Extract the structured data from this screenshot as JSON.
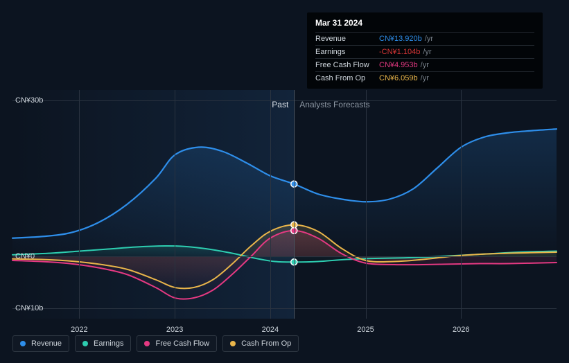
{
  "chart": {
    "background_color": "#0c1420",
    "grid_color": "#2a3340",
    "label_color": "#cfd6dd",
    "label_fontsize": 11,
    "y_axis": {
      "min": -12,
      "max": 32,
      "ticks": [
        {
          "value": 30,
          "label": "CN¥30b"
        },
        {
          "value": 0,
          "label": "CN¥0"
        },
        {
          "value": -10,
          "label": "CN¥10b"
        }
      ]
    },
    "x_axis": {
      "min": 2021.3,
      "max": 2027.0,
      "ticks": [
        {
          "value": 2022,
          "label": "2022"
        },
        {
          "value": 2023,
          "label": "2023"
        },
        {
          "value": 2024,
          "label": "2024"
        },
        {
          "value": 2025,
          "label": "2025"
        },
        {
          "value": 2026,
          "label": "2026"
        }
      ]
    },
    "cursor_x": 2024.25,
    "past_boundary_x": 2024.25,
    "series": [
      {
        "id": "revenue",
        "name": "Revenue",
        "color": "#2e8eea",
        "line_width": 2.2,
        "fill_opacity": 0.12,
        "marker": {
          "x": 2024.25,
          "y": 13.92
        },
        "points": [
          [
            2021.3,
            3.5
          ],
          [
            2021.6,
            3.8
          ],
          [
            2021.9,
            4.5
          ],
          [
            2022.2,
            6.5
          ],
          [
            2022.5,
            10.0
          ],
          [
            2022.8,
            15.0
          ],
          [
            2023.0,
            19.5
          ],
          [
            2023.25,
            21.0
          ],
          [
            2023.5,
            20.2
          ],
          [
            2023.75,
            18.0
          ],
          [
            2024.0,
            15.5
          ],
          [
            2024.25,
            13.92
          ],
          [
            2024.5,
            12.0
          ],
          [
            2024.75,
            11.0
          ],
          [
            2025.0,
            10.5
          ],
          [
            2025.25,
            11.0
          ],
          [
            2025.5,
            13.0
          ],
          [
            2025.75,
            17.0
          ],
          [
            2026.0,
            21.0
          ],
          [
            2026.25,
            23.0
          ],
          [
            2026.5,
            23.8
          ],
          [
            2026.75,
            24.2
          ],
          [
            2027.0,
            24.5
          ]
        ]
      },
      {
        "id": "earnings",
        "name": "Earnings",
        "color": "#2dcdb0",
        "line_width": 2,
        "fill_opacity": 0.1,
        "marker": {
          "x": 2024.25,
          "y": -1.104
        },
        "points": [
          [
            2021.3,
            0.3
          ],
          [
            2021.7,
            0.6
          ],
          [
            2022.0,
            1.0
          ],
          [
            2022.3,
            1.4
          ],
          [
            2022.6,
            1.8
          ],
          [
            2022.9,
            2.0
          ],
          [
            2023.1,
            1.9
          ],
          [
            2023.35,
            1.4
          ],
          [
            2023.6,
            0.6
          ],
          [
            2023.85,
            -0.4
          ],
          [
            2024.05,
            -1.0
          ],
          [
            2024.25,
            -1.104
          ],
          [
            2024.5,
            -1.0
          ],
          [
            2024.8,
            -0.6
          ],
          [
            2025.1,
            -0.4
          ],
          [
            2025.4,
            -0.3
          ],
          [
            2025.7,
            -0.1
          ],
          [
            2026.0,
            0.2
          ],
          [
            2026.3,
            0.5
          ],
          [
            2026.6,
            0.8
          ],
          [
            2027.0,
            1.0
          ]
        ]
      },
      {
        "id": "fcf",
        "name": "Free Cash Flow",
        "color": "#e53982",
        "line_width": 2,
        "fill_opacity": 0.12,
        "marker": {
          "x": 2024.25,
          "y": 4.953
        },
        "points": [
          [
            2021.3,
            -0.8
          ],
          [
            2021.6,
            -1.0
          ],
          [
            2021.9,
            -1.4
          ],
          [
            2022.2,
            -2.2
          ],
          [
            2022.5,
            -3.5
          ],
          [
            2022.8,
            -6.0
          ],
          [
            2023.0,
            -8.0
          ],
          [
            2023.2,
            -8.0
          ],
          [
            2023.4,
            -6.5
          ],
          [
            2023.6,
            -3.5
          ],
          [
            2023.8,
            0.0
          ],
          [
            2024.0,
            3.5
          ],
          [
            2024.25,
            4.953
          ],
          [
            2024.5,
            3.5
          ],
          [
            2024.75,
            0.5
          ],
          [
            2025.0,
            -1.3
          ],
          [
            2025.3,
            -1.6
          ],
          [
            2025.6,
            -1.6
          ],
          [
            2025.9,
            -1.5
          ],
          [
            2026.2,
            -1.4
          ],
          [
            2026.5,
            -1.4
          ],
          [
            2027.0,
            -1.2
          ]
        ]
      },
      {
        "id": "cfo",
        "name": "Cash From Op",
        "color": "#e9b54a",
        "line_width": 2,
        "fill_opacity": 0.1,
        "marker": {
          "x": 2024.25,
          "y": 6.059
        },
        "points": [
          [
            2021.3,
            -0.5
          ],
          [
            2021.6,
            -0.6
          ],
          [
            2021.9,
            -0.9
          ],
          [
            2022.2,
            -1.5
          ],
          [
            2022.5,
            -2.5
          ],
          [
            2022.8,
            -4.5
          ],
          [
            2023.0,
            -6.0
          ],
          [
            2023.2,
            -6.0
          ],
          [
            2023.4,
            -4.5
          ],
          [
            2023.6,
            -1.5
          ],
          [
            2023.8,
            2.0
          ],
          [
            2024.0,
            4.8
          ],
          [
            2024.25,
            6.059
          ],
          [
            2024.5,
            4.8
          ],
          [
            2024.75,
            1.5
          ],
          [
            2025.0,
            -0.8
          ],
          [
            2025.3,
            -1.0
          ],
          [
            2025.6,
            -0.6
          ],
          [
            2025.9,
            0.0
          ],
          [
            2026.2,
            0.4
          ],
          [
            2026.5,
            0.6
          ],
          [
            2027.0,
            0.8
          ]
        ]
      }
    ],
    "sections": {
      "past": "Past",
      "forecast": "Analysts Forecasts"
    }
  },
  "tooltip": {
    "title": "Mar 31 2024",
    "unit": "/yr",
    "rows": [
      {
        "label": "Revenue",
        "value": "CN¥13.920b",
        "color": "#2e8eea"
      },
      {
        "label": "Earnings",
        "value": "-CN¥1.104b",
        "color": "#d83636"
      },
      {
        "label": "Free Cash Flow",
        "value": "CN¥4.953b",
        "color": "#e53982"
      },
      {
        "label": "Cash From Op",
        "value": "CN¥6.059b",
        "color": "#e9b54a"
      }
    ]
  },
  "legend": [
    {
      "id": "revenue",
      "label": "Revenue",
      "color": "#2e8eea"
    },
    {
      "id": "earnings",
      "label": "Earnings",
      "color": "#2dcdb0"
    },
    {
      "id": "fcf",
      "label": "Free Cash Flow",
      "color": "#e53982"
    },
    {
      "id": "cfo",
      "label": "Cash From Op",
      "color": "#e9b54a"
    }
  ]
}
